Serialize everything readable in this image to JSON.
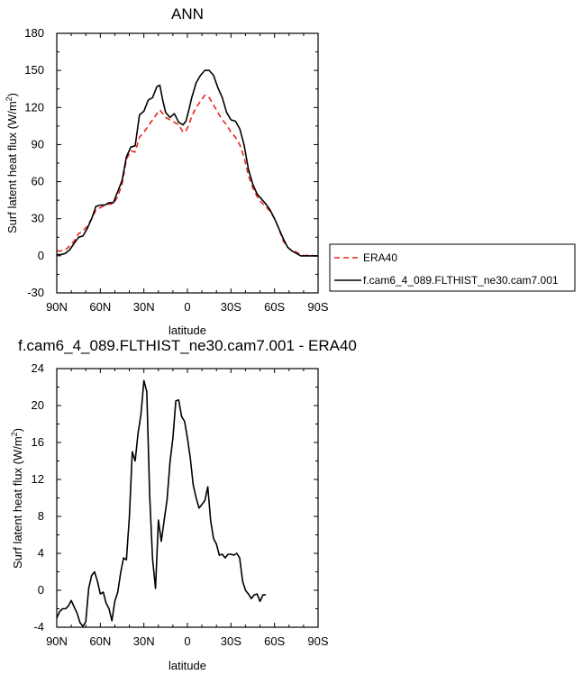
{
  "chart_data": [
    {
      "type": "line",
      "title": "ANN",
      "xlabel": "latitude",
      "ylabel": "Surf latent heat flux (W/m",
      "ylabel_sup": "2",
      "ylabel_close": ")",
      "xlim": [
        90,
        -90
      ],
      "ylim": [
        -30,
        180
      ],
      "x_ticks": [
        90,
        60,
        30,
        0,
        -30,
        -60,
        -90
      ],
      "x_tick_labels": [
        "90N",
        "60N",
        "30N",
        "0",
        "30S",
        "60S",
        "90S"
      ],
      "y_ticks": [
        -30,
        0,
        30,
        60,
        90,
        120,
        150,
        180
      ],
      "y_tick_labels": [
        "-30",
        "0",
        "30",
        "60",
        "90",
        "120",
        "150",
        "180"
      ],
      "legend_position": "outside-right",
      "series": [
        {
          "name": "ERA40",
          "color": "#e8251b",
          "dash": "dashed",
          "points": [
            [
              90,
              4
            ],
            [
              87,
              4
            ],
            [
              84,
              5
            ],
            [
              81,
              8
            ],
            [
              78,
              12
            ],
            [
              75,
              18
            ],
            [
              72,
              20
            ],
            [
              69,
              24
            ],
            [
              66,
              30
            ],
            [
              63,
              37
            ],
            [
              60,
              39
            ],
            [
              57,
              41
            ],
            [
              54,
              42
            ],
            [
              51,
              42
            ],
            [
              48,
              48
            ],
            [
              45,
              58
            ],
            [
              42,
              78
            ],
            [
              39,
              85
            ],
            [
              36,
              84
            ],
            [
              33,
              96
            ],
            [
              30,
              100
            ],
            [
              27,
              105
            ],
            [
              24,
              110
            ],
            [
              21,
              115
            ],
            [
              19,
              118
            ],
            [
              17,
              115
            ],
            [
              15,
              112
            ],
            [
              12,
              110
            ],
            [
              9,
              108
            ],
            [
              6,
              106
            ],
            [
              3,
              100
            ],
            [
              1,
              101
            ],
            [
              -1,
              106
            ],
            [
              -3,
              113
            ],
            [
              -6,
              120
            ],
            [
              -9,
              125
            ],
            [
              -12,
              130
            ],
            [
              -15,
              128
            ],
            [
              -18,
              122
            ],
            [
              -21,
              116
            ],
            [
              -24,
              110
            ],
            [
              -27,
              106
            ],
            [
              -30,
              100
            ],
            [
              -33,
              96
            ],
            [
              -36,
              90
            ],
            [
              -39,
              80
            ],
            [
              -42,
              65
            ],
            [
              -45,
              55
            ],
            [
              -48,
              48
            ],
            [
              -51,
              43
            ],
            [
              -54,
              40
            ],
            [
              -57,
              36
            ],
            [
              -60,
              30
            ],
            [
              -63,
              22
            ],
            [
              -66,
              12
            ],
            [
              -69,
              7
            ],
            [
              -72,
              4
            ],
            [
              -75,
              3
            ],
            [
              -78,
              1
            ],
            [
              -81,
              0
            ],
            [
              -84,
              1
            ],
            [
              -87,
              0
            ],
            [
              -90,
              0
            ]
          ]
        },
        {
          "name": "f.cam6_4_089.FLTHIST_ne30.cam7.001",
          "color": "#000000",
          "dash": "solid",
          "points": [
            [
              90,
              1
            ],
            [
              87,
              1
            ],
            [
              84,
              2
            ],
            [
              81,
              5
            ],
            [
              78,
              10
            ],
            [
              75,
              15
            ],
            [
              72,
              16
            ],
            [
              69,
              22
            ],
            [
              66,
              30
            ],
            [
              63,
              40
            ],
            [
              60,
              41
            ],
            [
              57,
              41
            ],
            [
              54,
              43
            ],
            [
              51,
              43
            ],
            [
              48,
              52
            ],
            [
              45,
              61
            ],
            [
              42,
              80
            ],
            [
              39,
              88
            ],
            [
              36,
              89
            ],
            [
              33,
              114
            ],
            [
              30,
              117
            ],
            [
              27,
              126
            ],
            [
              24,
              128
            ],
            [
              21,
              137
            ],
            [
              19,
              138
            ],
            [
              17,
              126
            ],
            [
              15,
              116
            ],
            [
              12,
              112
            ],
            [
              9,
              115
            ],
            [
              6,
              108
            ],
            [
              3,
              106
            ],
            [
              1,
              109
            ],
            [
              -1,
              118
            ],
            [
              -3,
              128
            ],
            [
              -6,
              140
            ],
            [
              -9,
              146
            ],
            [
              -12,
              150
            ],
            [
              -15,
              150
            ],
            [
              -18,
              146
            ],
            [
              -21,
              136
            ],
            [
              -24,
              128
            ],
            [
              -27,
              116
            ],
            [
              -30,
              110
            ],
            [
              -33,
              109
            ],
            [
              -36,
              103
            ],
            [
              -39,
              90
            ],
            [
              -42,
              70
            ],
            [
              -45,
              58
            ],
            [
              -48,
              50
            ],
            [
              -51,
              46
            ],
            [
              -54,
              42
            ],
            [
              -57,
              37
            ],
            [
              -60,
              30
            ],
            [
              -63,
              22
            ],
            [
              -66,
              14
            ],
            [
              -69,
              7
            ],
            [
              -72,
              4
            ],
            [
              -75,
              2
            ],
            [
              -78,
              0
            ],
            [
              -81,
              0
            ],
            [
              -84,
              0
            ],
            [
              -87,
              0
            ],
            [
              -90,
              0
            ]
          ]
        }
      ]
    },
    {
      "type": "line",
      "title": "f.cam6_4_089.FLTHIST_ne30.cam7.001 - ERA40",
      "xlabel": "latitude",
      "ylabel": "Surf latent heat flux (W/m",
      "ylabel_sup": "2",
      "ylabel_close": ")",
      "xlim": [
        90,
        -90
      ],
      "ylim": [
        -4,
        24
      ],
      "x_ticks": [
        90,
        60,
        30,
        0,
        -30,
        -60,
        -90
      ],
      "x_tick_labels": [
        "90N",
        "60N",
        "30N",
        "0",
        "30S",
        "60S",
        "90S"
      ],
      "y_ticks": [
        -4,
        0,
        4,
        8,
        12,
        16,
        20,
        24
      ],
      "y_tick_labels": [
        "-4",
        "0",
        "4",
        "8",
        "12",
        "16",
        "20",
        "24"
      ],
      "series": [
        {
          "color": "#000000",
          "dash": "solid",
          "points": [
            [
              90,
              -3
            ],
            [
              88,
              -2.3
            ],
            [
              86,
              -2
            ],
            [
              84,
              -2
            ],
            [
              82,
              -1.7
            ],
            [
              80,
              -1.1
            ],
            [
              78,
              -1.8
            ],
            [
              76,
              -2.5
            ],
            [
              74,
              -3.5
            ],
            [
              72,
              -3.9
            ],
            [
              70,
              -3.4
            ],
            [
              68,
              0.2
            ],
            [
              66,
              1.6
            ],
            [
              64,
              2
            ],
            [
              62,
              1
            ],
            [
              60,
              -0.4
            ],
            [
              58,
              -0.2
            ],
            [
              56,
              -1.4
            ],
            [
              54,
              -2
            ],
            [
              52,
              -3.3
            ],
            [
              50,
              -1.2
            ],
            [
              48,
              -0.2
            ],
            [
              46,
              1.9
            ],
            [
              44,
              3.5
            ],
            [
              42,
              3.3
            ],
            [
              40,
              8
            ],
            [
              38,
              15
            ],
            [
              36,
              14
            ],
            [
              34,
              17
            ],
            [
              32,
              19
            ],
            [
              30,
              22.7
            ],
            [
              28,
              21.5
            ],
            [
              26,
              10.3
            ],
            [
              24,
              3.4
            ],
            [
              22,
              0.2
            ],
            [
              20,
              7.6
            ],
            [
              18,
              5.3
            ],
            [
              16,
              7.6
            ],
            [
              14,
              9.8
            ],
            [
              12,
              13.9
            ],
            [
              10,
              16.5
            ],
            [
              8,
              20.5
            ],
            [
              6,
              20.6
            ],
            [
              4,
              18.8
            ],
            [
              2,
              18.3
            ],
            [
              0,
              16.5
            ],
            [
              -2,
              14.3
            ],
            [
              -4,
              11.4
            ],
            [
              -6,
              10
            ],
            [
              -8,
              8.9
            ],
            [
              -10,
              9.3
            ],
            [
              -12,
              9.7
            ],
            [
              -14,
              11.2
            ],
            [
              -16,
              7.5
            ],
            [
              -18,
              5.6
            ],
            [
              -20,
              5
            ],
            [
              -22,
              3.8
            ],
            [
              -24,
              3.9
            ],
            [
              -26,
              3.5
            ],
            [
              -28,
              3.9
            ],
            [
              -30,
              3.9
            ],
            [
              -32,
              3.8
            ],
            [
              -34,
              4
            ],
            [
              -36,
              3.5
            ],
            [
              -38,
              1
            ],
            [
              -40,
              0
            ],
            [
              -42,
              -0.4
            ],
            [
              -44,
              -0.9
            ],
            [
              -46,
              -0.5
            ],
            [
              -48,
              -0.4
            ],
            [
              -50,
              -1.2
            ],
            [
              -52,
              -0.5
            ],
            [
              -54,
              -0.5
            ]
          ]
        }
      ]
    }
  ]
}
